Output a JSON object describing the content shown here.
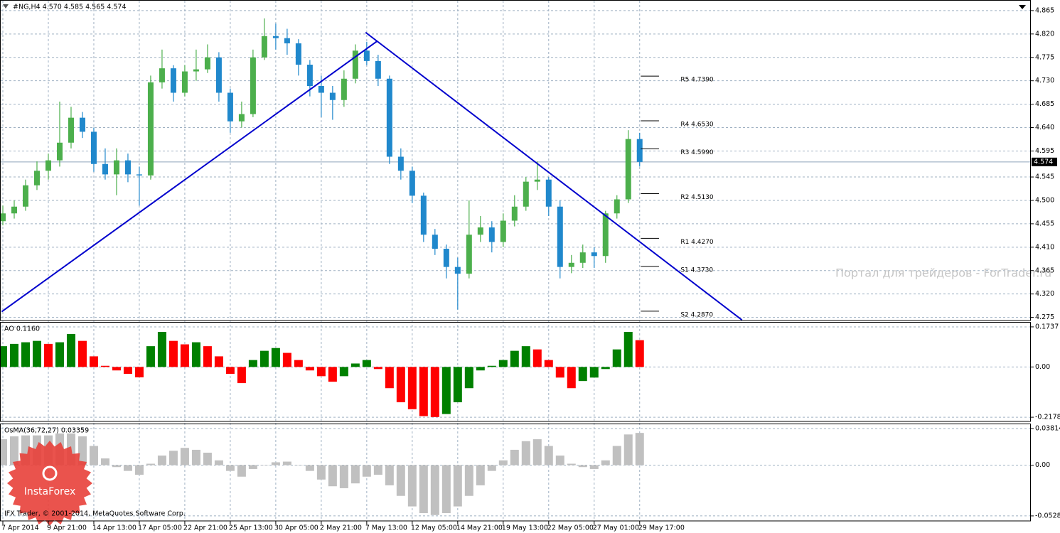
{
  "chart_data": [
    {
      "type": "candlestick",
      "title": "#NG,H4  4.570 4.585 4.565 4.574",
      "candles": [
        [
          4.46,
          4.49,
          4.452,
          4.475
        ],
        [
          4.475,
          4.5,
          4.465,
          4.488
        ],
        [
          4.488,
          4.54,
          4.48,
          4.529
        ],
        [
          4.529,
          4.575,
          4.52,
          4.557
        ],
        [
          4.557,
          4.59,
          4.54,
          4.577
        ],
        [
          4.577,
          4.69,
          4.565,
          4.611
        ],
        [
          4.611,
          4.68,
          4.6,
          4.659
        ],
        [
          4.659,
          4.67,
          4.62,
          4.632
        ],
        [
          4.632,
          4.64,
          4.555,
          4.57
        ],
        [
          4.57,
          4.6,
          4.54,
          4.55
        ],
        [
          4.55,
          4.6,
          4.51,
          4.577
        ],
        [
          4.577,
          4.59,
          4.535,
          4.55
        ],
        [
          4.55,
          4.565,
          4.49,
          4.548
        ],
        [
          4.548,
          4.74,
          4.54,
          4.727
        ],
        [
          4.727,
          4.79,
          4.715,
          4.754
        ],
        [
          4.754,
          4.76,
          4.69,
          4.707
        ],
        [
          4.707,
          4.76,
          4.7,
          4.748
        ],
        [
          4.748,
          4.79,
          4.73,
          4.752
        ],
        [
          4.752,
          4.8,
          4.745,
          4.775
        ],
        [
          4.775,
          4.785,
          4.69,
          4.707
        ],
        [
          4.707,
          4.715,
          4.63,
          4.652
        ],
        [
          4.652,
          4.69,
          4.64,
          4.666
        ],
        [
          4.666,
          4.79,
          4.66,
          4.775
        ],
        [
          4.775,
          4.85,
          4.77,
          4.816
        ],
        [
          4.816,
          4.84,
          4.79,
          4.812
        ],
        [
          4.812,
          4.83,
          4.78,
          4.802
        ],
        [
          4.802,
          4.81,
          4.74,
          4.761
        ],
        [
          4.761,
          4.77,
          4.7,
          4.72
        ],
        [
          4.72,
          4.74,
          4.66,
          4.707
        ],
        [
          4.707,
          4.72,
          4.655,
          4.693
        ],
        [
          4.693,
          4.75,
          4.68,
          4.734
        ],
        [
          4.734,
          4.8,
          4.725,
          4.788
        ],
        [
          4.788,
          4.805,
          4.76,
          4.768
        ],
        [
          4.768,
          4.78,
          4.72,
          4.734
        ],
        [
          4.734,
          4.74,
          4.57,
          4.584
        ],
        [
          4.584,
          4.6,
          4.54,
          4.557
        ],
        [
          4.557,
          4.565,
          4.495,
          4.509
        ],
        [
          4.509,
          4.515,
          4.42,
          4.434
        ],
        [
          4.434,
          4.445,
          4.395,
          4.407
        ],
        [
          4.407,
          4.415,
          4.35,
          4.372
        ],
        [
          4.372,
          4.39,
          4.29,
          4.359
        ],
        [
          4.359,
          4.5,
          4.35,
          4.434
        ],
        [
          4.434,
          4.47,
          4.42,
          4.448
        ],
        [
          4.448,
          4.46,
          4.4,
          4.42
        ],
        [
          4.42,
          4.475,
          4.41,
          4.461
        ],
        [
          4.461,
          4.51,
          4.45,
          4.488
        ],
        [
          4.488,
          4.545,
          4.48,
          4.536
        ],
        [
          4.536,
          4.575,
          4.52,
          4.54
        ],
        [
          4.54,
          4.545,
          4.47,
          4.488
        ],
        [
          4.488,
          4.5,
          4.35,
          4.372
        ],
        [
          4.372,
          4.395,
          4.36,
          4.38
        ],
        [
          4.38,
          4.415,
          4.37,
          4.4
        ],
        [
          4.4,
          4.41,
          4.37,
          4.393
        ],
        [
          4.393,
          4.48,
          4.38,
          4.475
        ],
        [
          4.475,
          4.51,
          4.465,
          4.502
        ],
        [
          4.502,
          4.635,
          4.495,
          4.618
        ],
        [
          4.618,
          4.63,
          4.565,
          4.574
        ]
      ],
      "up_color": "#4caf4c",
      "down_color": "#2088cc",
      "xlim": [
        -0.25,
        90.4
      ],
      "xticks": [
        {
          "value": 0,
          "label": "7 Apr 2014"
        },
        {
          "value": 4,
          "label": "9 Apr 21:00"
        },
        {
          "value": 8,
          "label": "14 Apr 13:00"
        },
        {
          "value": 12,
          "label": "17 Apr 05:00"
        },
        {
          "value": 16,
          "label": "22 Apr 21:00"
        },
        {
          "value": 20,
          "label": "25 Apr 13:00"
        },
        {
          "value": 24,
          "label": "30 Apr 05:00"
        },
        {
          "value": 28,
          "label": "2 May 21:00"
        },
        {
          "value": 32,
          "label": "7 May 13:00"
        },
        {
          "value": 36,
          "label": "12 May 05:00"
        },
        {
          "value": 40,
          "label": "14 May 21:00"
        },
        {
          "value": 44,
          "label": "19 May 13:00"
        },
        {
          "value": 48,
          "label": "22 May 05:00"
        },
        {
          "value": 52,
          "label": "27 May 01:00"
        },
        {
          "value": 56,
          "label": "29 May 17:00"
        }
      ],
      "ylim": [
        4.269,
        4.884
      ],
      "yticks": [
        4.865,
        {
          "value": 4.82,
          "label": "4.820"
        },
        4.775,
        {
          "value": 4.73,
          "label": "4.730"
        },
        4.685,
        {
          "value": 4.64,
          "label": "4.640"
        },
        4.595,
        4.545,
        {
          "value": 4.5,
          "label": "4.500"
        },
        4.455,
        {
          "value": 4.41,
          "label": "4.410"
        },
        4.365,
        {
          "value": 4.32,
          "label": "4.320"
        },
        4.275
      ],
      "grid": true,
      "current_price": 4.574,
      "levels": [
        {
          "value": 4.739,
          "label": "R5 4.7390"
        },
        {
          "value": 4.653,
          "label": "R4 4.6530"
        },
        {
          "value": 4.599,
          "label": "R3 4.5990"
        },
        {
          "value": 4.513,
          "label": "R2 4.5130"
        },
        {
          "value": 4.427,
          "label": "R1 4.4270"
        },
        {
          "value": 4.373,
          "label": "S1 4.3730"
        },
        {
          "value": 4.287,
          "label": "S2 4.2870"
        }
      ],
      "trendlines": [
        {
          "points": [
            [
              -0.1,
              4.286
            ],
            [
              32.9,
              4.806
            ]
          ]
        },
        {
          "points": [
            [
              31.9,
              4.823
            ],
            [
              65,
              4.27
            ]
          ]
        }
      ],
      "trendline_color": "#0000cd"
    },
    {
      "type": "bar",
      "title": "AO 0.1160",
      "values": [
        0.09,
        0.1,
        0.107,
        0.113,
        0.1,
        0.107,
        0.143,
        0.113,
        0.046,
        0.005,
        -0.015,
        -0.03,
        -0.045,
        0.09,
        0.152,
        0.113,
        0.098,
        0.107,
        0.09,
        0.046,
        -0.03,
        -0.07,
        0.03,
        0.07,
        0.082,
        0.061,
        0.03,
        -0.015,
        -0.04,
        -0.064,
        -0.04,
        0.015,
        0.03,
        -0.009,
        -0.092,
        -0.153,
        -0.183,
        -0.213,
        -0.217,
        -0.204,
        -0.153,
        -0.092,
        -0.015,
        0.005,
        0.03,
        0.07,
        0.09,
        0.076,
        0.03,
        -0.046,
        -0.092,
        -0.061,
        -0.046,
        -0.009,
        0.076,
        0.152,
        0.116
      ],
      "up_color": "#008000",
      "down_color": "#ff0000",
      "ylim": [
        -0.236,
        0.192
      ],
      "yticks": [
        0.1737,
        {
          "value": 0,
          "label": "0.00"
        },
        -0.2178
      ]
    },
    {
      "type": "bar",
      "title": "OsMA(36,72,27) 0.03359",
      "values": [
        0.027,
        0.03,
        0.031,
        0.031,
        0.031,
        0.033,
        0.033,
        0.03,
        0.02,
        0.007,
        -0.002,
        -0.006,
        -0.01,
        0.0015,
        0.01,
        0.015,
        0.018,
        0.016,
        0.013,
        0.005,
        -0.006,
        -0.012,
        -0.004,
        0.0003,
        0.003,
        0.0037,
        -0.0003,
        -0.006,
        -0.015,
        -0.022,
        -0.024,
        -0.019,
        -0.012,
        -0.01,
        -0.021,
        -0.032,
        -0.043,
        -0.05,
        -0.052,
        -0.05,
        -0.043,
        -0.032,
        -0.021,
        -0.006,
        0.005,
        0.016,
        0.025,
        0.027,
        0.02,
        0.01,
        0.0015,
        -0.002,
        -0.004,
        0.005,
        0.02,
        0.032,
        0.03359
      ],
      "color": "#c0c0c0",
      "ylim": [
        -0.0581,
        0.0426
      ],
      "yticks": [
        0.03814,
        {
          "value": 0,
          "label": "0.00"
        },
        -0.05287
      ]
    }
  ],
  "watermark": "Портал для трейдеров - ForTrader.ru",
  "logo_text": "InstaForex",
  "copyright": "IFX Trader, © 2001-2014, MetaQuotes Software Corp."
}
